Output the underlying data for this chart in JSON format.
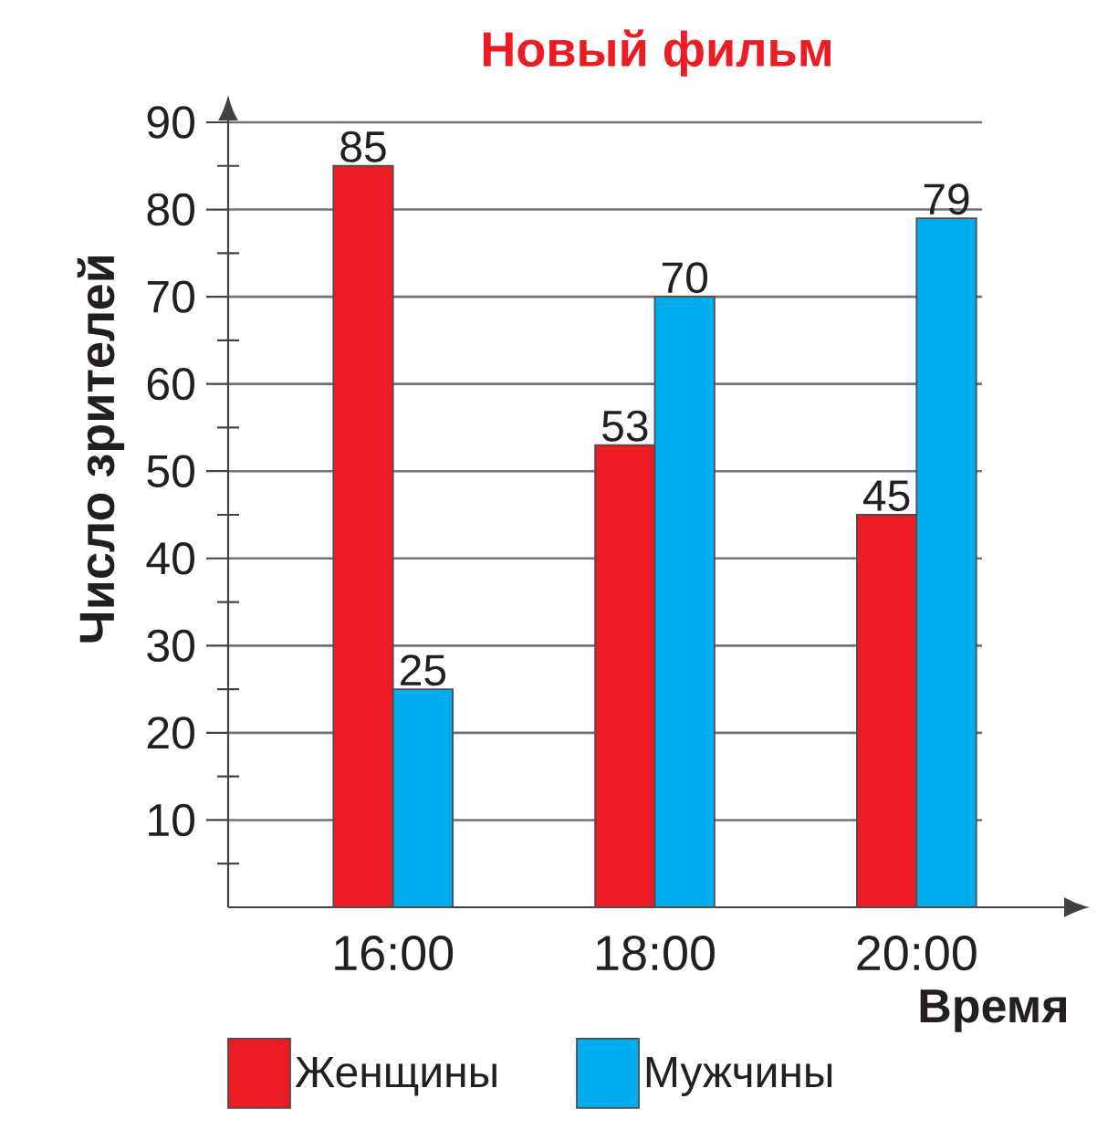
{
  "chart_data": {
    "type": "bar",
    "title": "Новый фильм",
    "xlabel": "Время",
    "ylabel": "Число зрителей",
    "categories": [
      "16:00",
      "18:00",
      "20:00"
    ],
    "series": [
      {
        "name": "Женщины",
        "color": "#ed1c24",
        "values": [
          85,
          53,
          45
        ]
      },
      {
        "name": "Мужчины",
        "color": "#00aeef",
        "values": [
          25,
          70,
          79
        ]
      }
    ],
    "ylim": [
      0,
      90
    ],
    "yticks": [
      {
        "value": 5,
        "label": null
      },
      10,
      {
        "value": 15,
        "label": null
      },
      20,
      {
        "value": 25,
        "label": null
      },
      30,
      {
        "value": 35,
        "label": null
      },
      40,
      {
        "value": 45,
        "label": null
      },
      50,
      {
        "value": 55,
        "label": null
      },
      60,
      {
        "value": 65,
        "label": null
      },
      70,
      {
        "value": 75,
        "label": null
      },
      80,
      {
        "value": 85,
        "label": null
      },
      90
    ],
    "grid": "y",
    "legend": "bottom",
    "data_labels": true
  }
}
